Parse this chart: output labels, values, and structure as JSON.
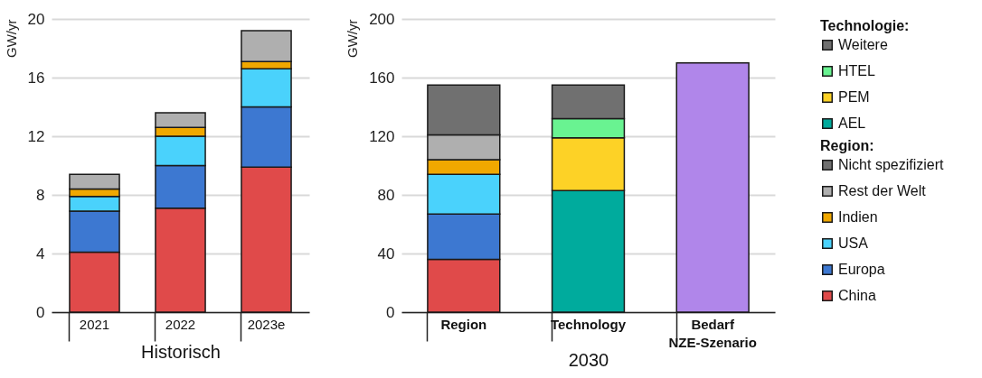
{
  "chart_data": [
    {
      "type": "bar",
      "stacked": true,
      "categories": [
        "2021",
        "2022",
        "2023e"
      ],
      "xlabel": "Historisch",
      "ylabel": "GW/yr",
      "ylim": [
        0,
        20
      ],
      "yticks": [
        0,
        4,
        8,
        12,
        16,
        20
      ],
      "grid": "y",
      "series": [
        {
          "color": "#e04a4a",
          "values": [
            4.1,
            7.1,
            9.9
          ]
        },
        {
          "color": "#3d78d1",
          "values": [
            2.8,
            2.9,
            4.1
          ]
        },
        {
          "color": "#4ad2fc",
          "values": [
            1.0,
            2.0,
            2.6
          ]
        },
        {
          "color": "#f0a800",
          "values": [
            0.5,
            0.6,
            0.5
          ]
        },
        {
          "color": "#afafaf",
          "values": [
            1.0,
            1.0,
            2.1
          ]
        }
      ]
    },
    {
      "type": "bar",
      "stacked": true,
      "categories": [
        "Region",
        "Technology",
        "Bedarf NZE-Szenario"
      ],
      "xlabel": "2030",
      "ylabel": "GW/yr",
      "ylim": [
        0,
        200
      ],
      "yticks": [
        0,
        40,
        80,
        120,
        160,
        200
      ],
      "grid": "y",
      "legend": "right",
      "legend_title": [
        "Technologie:",
        "Region:"
      ],
      "series": [
        {
          "name": "China",
          "color": "#e04a4a",
          "values": [
            36,
            null,
            null
          ]
        },
        {
          "name": "Europa",
          "color": "#3d78d1",
          "values": [
            31,
            null,
            null
          ]
        },
        {
          "name": "USA",
          "color": "#4ad2fc",
          "values": [
            27,
            null,
            null
          ]
        },
        {
          "name": "Indien",
          "color": "#f0a800",
          "values": [
            10,
            null,
            null
          ]
        },
        {
          "name": "Rest der Welt",
          "color": "#afafaf",
          "values": [
            17,
            null,
            null
          ]
        },
        {
          "name": "Nicht spezifiziert",
          "color": "#707070",
          "values": [
            34,
            null,
            null
          ]
        },
        {
          "name": "AEL",
          "color": "#00ab9d",
          "values": [
            null,
            83,
            null
          ]
        },
        {
          "name": "PEM",
          "color": "#fdd226",
          "values": [
            null,
            36,
            null
          ]
        },
        {
          "name": "HTEL",
          "color": "#69f391",
          "values": [
            null,
            13,
            null
          ]
        },
        {
          "name": "Weitere",
          "color": "#707070",
          "values": [
            null,
            23,
            null
          ]
        },
        {
          "color": "#b086ea",
          "values": [
            null,
            null,
            170
          ]
        }
      ]
    }
  ]
}
